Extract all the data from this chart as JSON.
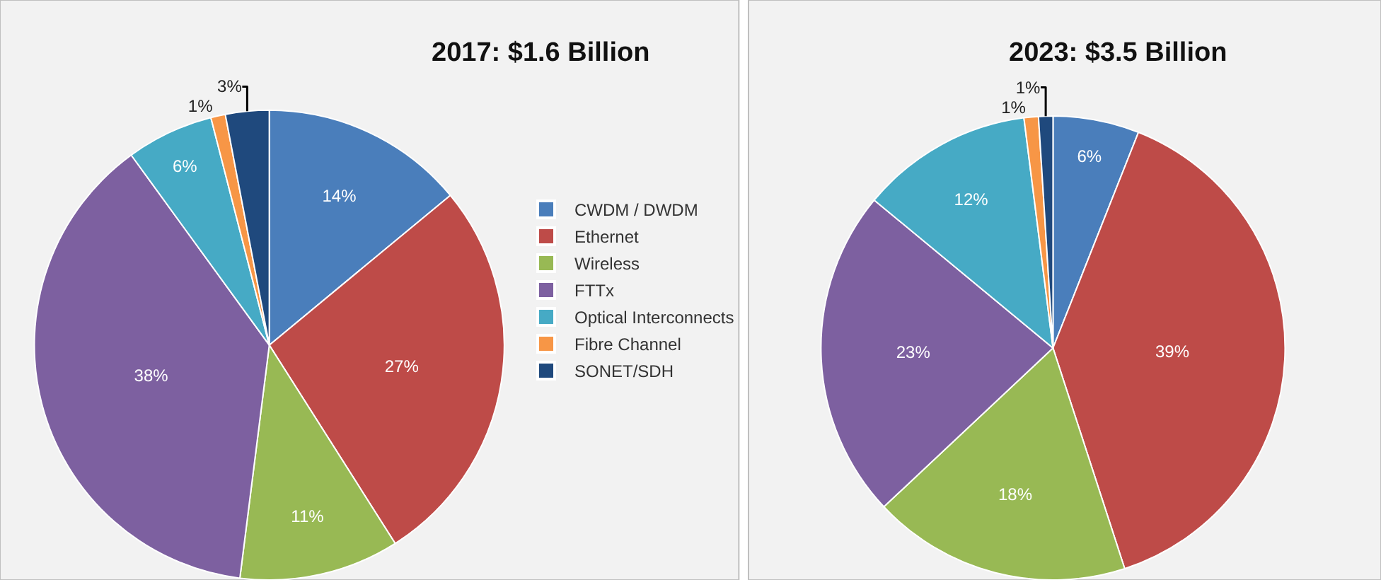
{
  "chart_data": [
    {
      "type": "pie",
      "title": "2017: $1.6 Billion",
      "categories": [
        "CWDM / DWDM",
        "Ethernet",
        "Wireless",
        "FTTx",
        "Optical Interconnects",
        "Fibre Channel",
        "SONET/SDH"
      ],
      "values": [
        14,
        27,
        11,
        38,
        6,
        1,
        3
      ],
      "colors": [
        "#4a7ebb",
        "#be4b48",
        "#98b954",
        "#7d60a0",
        "#46aac5",
        "#f79646",
        "#1f497d"
      ],
      "value_labels": [
        "14%",
        "27%",
        "11%",
        "38%",
        "6%",
        "1%",
        "3%"
      ],
      "legend": "right"
    },
    {
      "type": "pie",
      "title": "2023: $3.5 Billion",
      "categories": [
        null,
        null,
        null,
        null,
        null,
        null,
        null
      ],
      "values": [
        6,
        39,
        18,
        23,
        12,
        1,
        1
      ],
      "colors": [
        "#4a7ebb",
        "#be4b48",
        "#98b954",
        "#7d60a0",
        "#46aac5",
        "#f79646",
        "#1f497d"
      ],
      "value_labels": [
        "6%",
        "39%",
        "18%",
        "23%",
        "12%",
        "1%",
        "1%"
      ],
      "legend": false
    }
  ]
}
